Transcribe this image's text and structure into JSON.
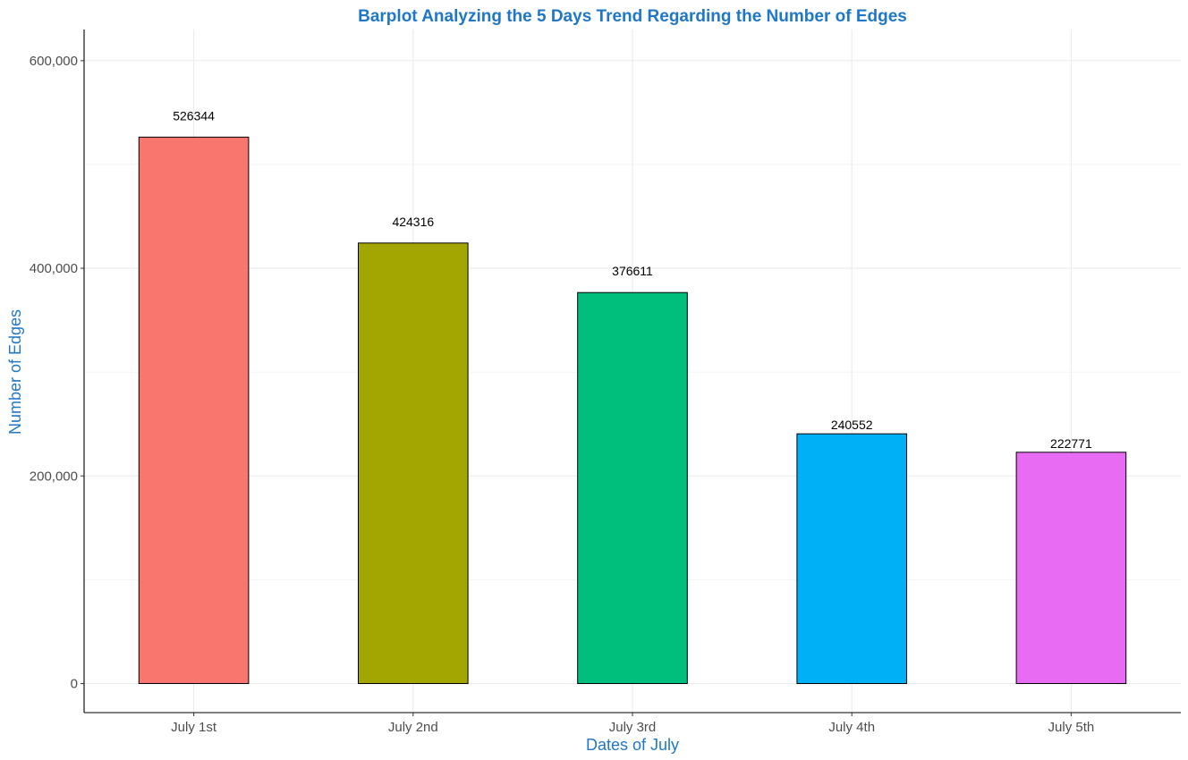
{
  "chart_data": {
    "type": "bar",
    "title": "Barplot Analyzing the 5 Days Trend Regarding the Number of Edges",
    "xlabel": "Dates of July",
    "ylabel": "Number of Edges",
    "categories": [
      "July 1st",
      "July 2nd",
      "July 3rd",
      "July 4th",
      "July 5th"
    ],
    "values": [
      526344,
      424316,
      376611,
      240552,
      222771
    ],
    "data_labels": [
      "526344",
      "424316",
      "376611",
      "240552",
      "222771"
    ],
    "bar_colors": [
      "#F8766D",
      "#A3A500",
      "#00BF7D",
      "#00B0F6",
      "#E76BF3"
    ],
    "ylim": [
      -28000,
      630000
    ],
    "y_ticks": [
      0,
      200000,
      400000,
      600000
    ],
    "y_tick_labels": [
      "0",
      "200,000",
      "400,000",
      "600,000"
    ],
    "y_minor_ticks": [
      100000,
      300000,
      500000
    ],
    "grid": true,
    "legend": "none",
    "title_color": "#1F77C8",
    "axis_title_color": "#1F77C8"
  }
}
